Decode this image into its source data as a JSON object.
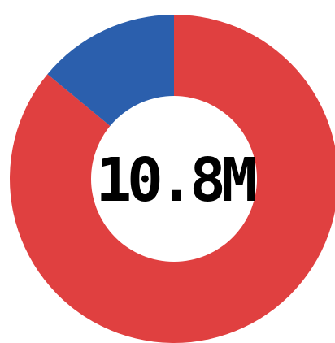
{
  "chart_data": {
    "type": "pie",
    "donut": true,
    "center_label": "10.8M",
    "slices": [
      {
        "value": 86,
        "color": "#e04040"
      },
      {
        "value": 14,
        "color": "#2b5fad"
      }
    ],
    "start_angle_deg": 0,
    "direction": "clockwise"
  }
}
